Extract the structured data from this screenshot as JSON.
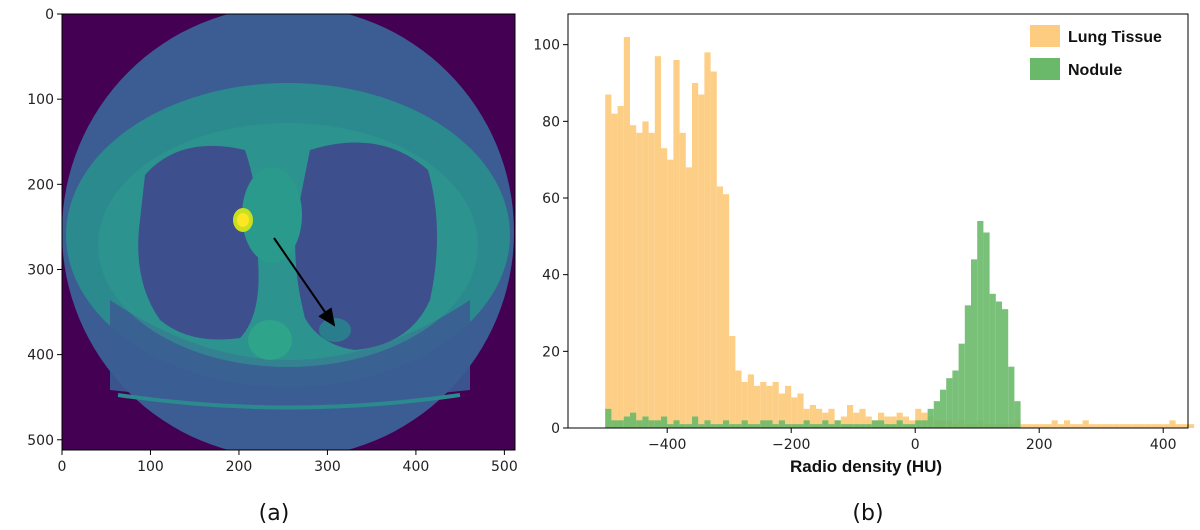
{
  "panel_labels": {
    "a": "(a)",
    "b": "(b)"
  },
  "chart_data": [
    {
      "type": "image",
      "panel": "(a)",
      "xlim": [
        0,
        512
      ],
      "ylim": [
        512,
        0
      ],
      "xticks": [
        0,
        100,
        200,
        300,
        400,
        500
      ],
      "yticks": [
        0,
        100,
        200,
        300,
        400,
        500
      ],
      "colormap": "viridis",
      "colors": {
        "background": "#440154",
        "body": "#3b5b92",
        "tissue": "#2a8a8c",
        "lung": "#3b4f8c",
        "hotspot": "#fde725"
      },
      "annotation": {
        "arrow_from": [
          245,
          260
        ],
        "arrow_to": [
          320,
          365
        ]
      }
    },
    {
      "type": "histogram",
      "panel": "(b)",
      "xlabel": "Radio density (HU)",
      "ylabel": "",
      "xlim": [
        -560,
        440
      ],
      "ylim": [
        0,
        108
      ],
      "xticks": [
        -400,
        -200,
        0,
        200,
        400
      ],
      "yticks": [
        0,
        20,
        40,
        60,
        80,
        100
      ],
      "legend_position": "top-right",
      "bin_start": -500,
      "bin_width": 10,
      "series": [
        {
          "name": "Lung Tissue",
          "color": "#fdcc80",
          "values": [
            87,
            82,
            84,
            102,
            79,
            77,
            80,
            77,
            97,
            73,
            70,
            96,
            77,
            68,
            90,
            87,
            98,
            93,
            63,
            61,
            24,
            15,
            12,
            14,
            11,
            12,
            11,
            12,
            9,
            11,
            8,
            9,
            5,
            6,
            5,
            4,
            5,
            2,
            3,
            6,
            4,
            5,
            3,
            2,
            4,
            3,
            3,
            4,
            3,
            2,
            5,
            4,
            3,
            2,
            2,
            2,
            1,
            2,
            1,
            1,
            2,
            1,
            1,
            1,
            1,
            1,
            2,
            1,
            1,
            1,
            1,
            1,
            2,
            1,
            2,
            1,
            1,
            2,
            1,
            1,
            1,
            1,
            1,
            1,
            1,
            1,
            1,
            1,
            1,
            1,
            1,
            2,
            1,
            1,
            1
          ]
        },
        {
          "name": "Nodule",
          "color": "#6ab96a",
          "values": [
            5,
            2,
            2,
            3,
            4,
            2,
            3,
            2,
            2,
            3,
            1,
            2,
            1,
            1,
            3,
            1,
            2,
            1,
            1,
            2,
            1,
            1,
            2,
            1,
            1,
            2,
            2,
            1,
            2,
            1,
            1,
            1,
            2,
            1,
            1,
            2,
            1,
            2,
            1,
            1,
            1,
            1,
            1,
            2,
            2,
            1,
            1,
            2,
            1,
            1,
            2,
            2,
            5,
            7,
            10,
            13,
            15,
            22,
            32,
            44,
            54,
            51,
            35,
            33,
            31,
            16,
            7,
            0,
            0,
            0,
            0,
            0,
            0,
            0,
            0,
            0,
            0,
            0,
            0,
            0,
            0,
            0,
            0,
            0,
            0,
            0,
            0,
            0,
            0,
            0,
            0,
            0,
            0,
            0,
            0
          ]
        }
      ]
    }
  ]
}
